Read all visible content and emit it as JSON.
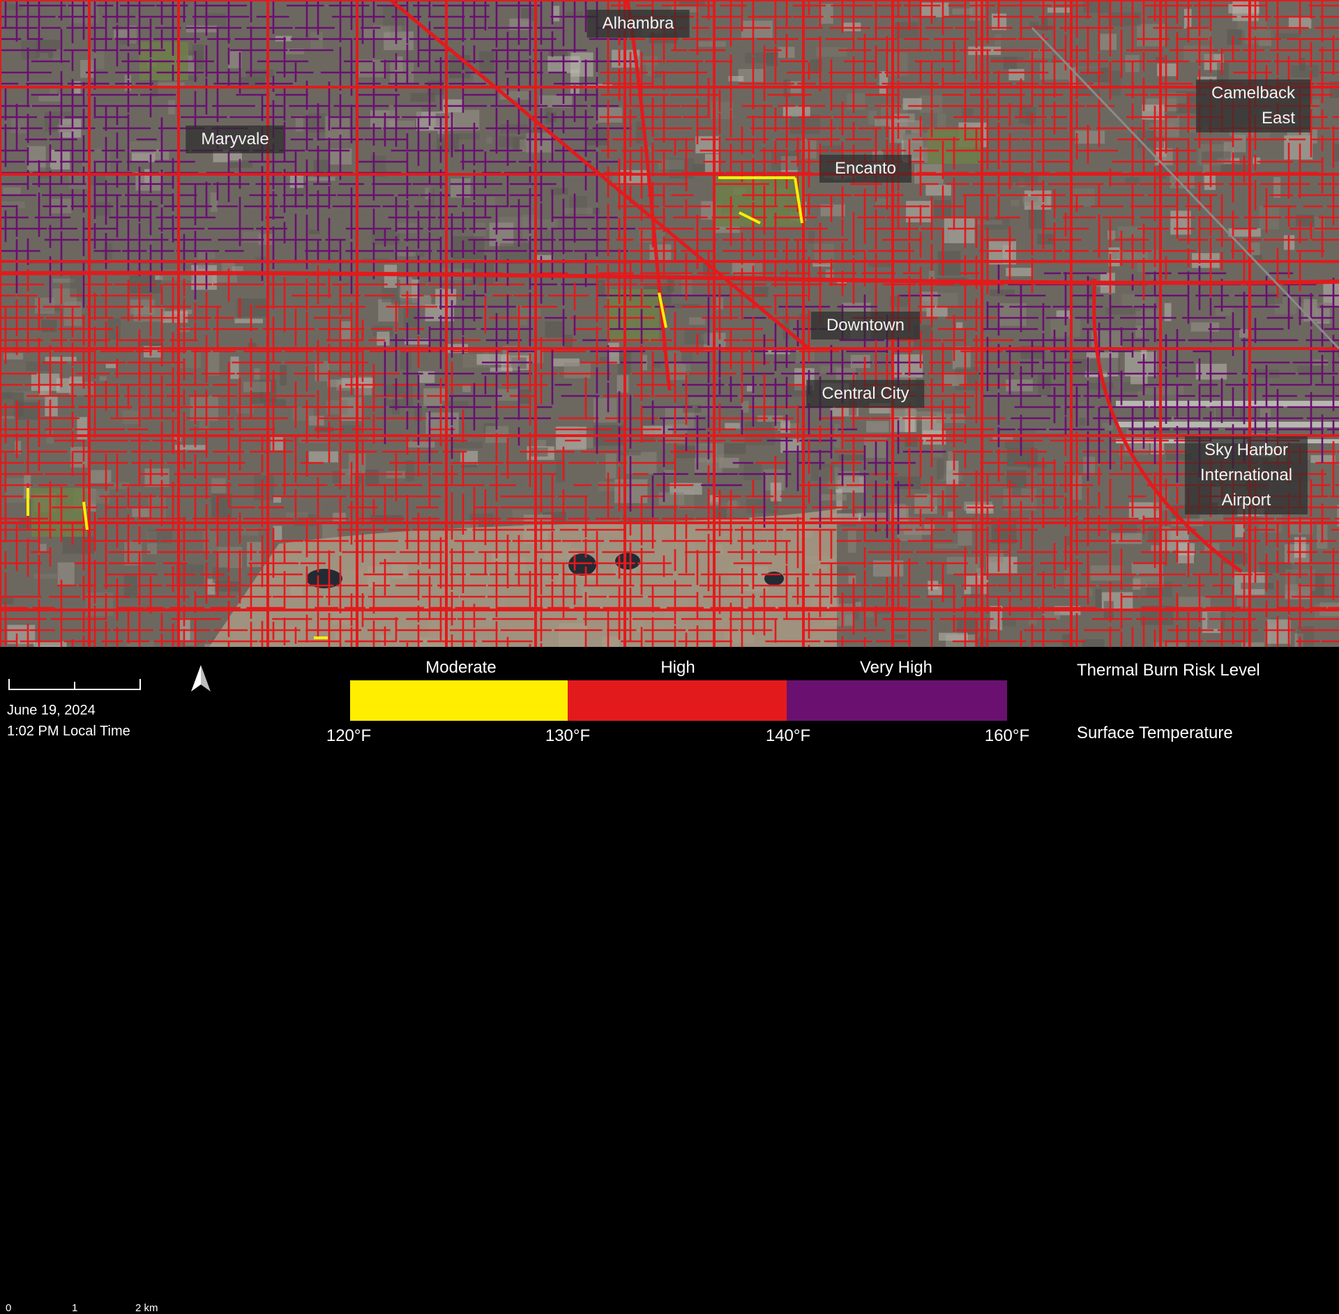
{
  "map": {
    "places": [
      {
        "id": "alhambra",
        "name": "Alhambra"
      },
      {
        "id": "maryvale",
        "name": "Maryvale"
      },
      {
        "id": "camelback-east",
        "name": "Camelback\nEast"
      },
      {
        "id": "encanto",
        "name": "Encanto"
      },
      {
        "id": "downtown",
        "name": "Downtown"
      },
      {
        "id": "central-city",
        "name": "Central City"
      },
      {
        "id": "sky-harbor",
        "name": "Sky Harbor\nInternational Airport"
      }
    ]
  },
  "scale": {
    "ticks": [
      "0",
      "1",
      "2 km"
    ]
  },
  "date": "June 19, 2024",
  "time": "1:02 PM Local Time",
  "legend": {
    "risk_title": "Thermal Burn Risk Level",
    "temp_title": "Surface Temperature",
    "bins": [
      {
        "label": "Moderate",
        "color": "#ffee00",
        "min": "120°F",
        "max": "130°F"
      },
      {
        "label": "High",
        "color": "#e31a1c",
        "min": "130°F",
        "max": "140°F"
      },
      {
        "label": "Very High",
        "color": "#6a1070",
        "min": "140°F",
        "max": "160°F"
      }
    ],
    "temp_ticks": [
      "120°F",
      "130°F",
      "140°F",
      "160°F"
    ]
  },
  "colors": {
    "moderate": "#ffee00",
    "high": "#e31a1c",
    "very_high": "#6a1070"
  }
}
